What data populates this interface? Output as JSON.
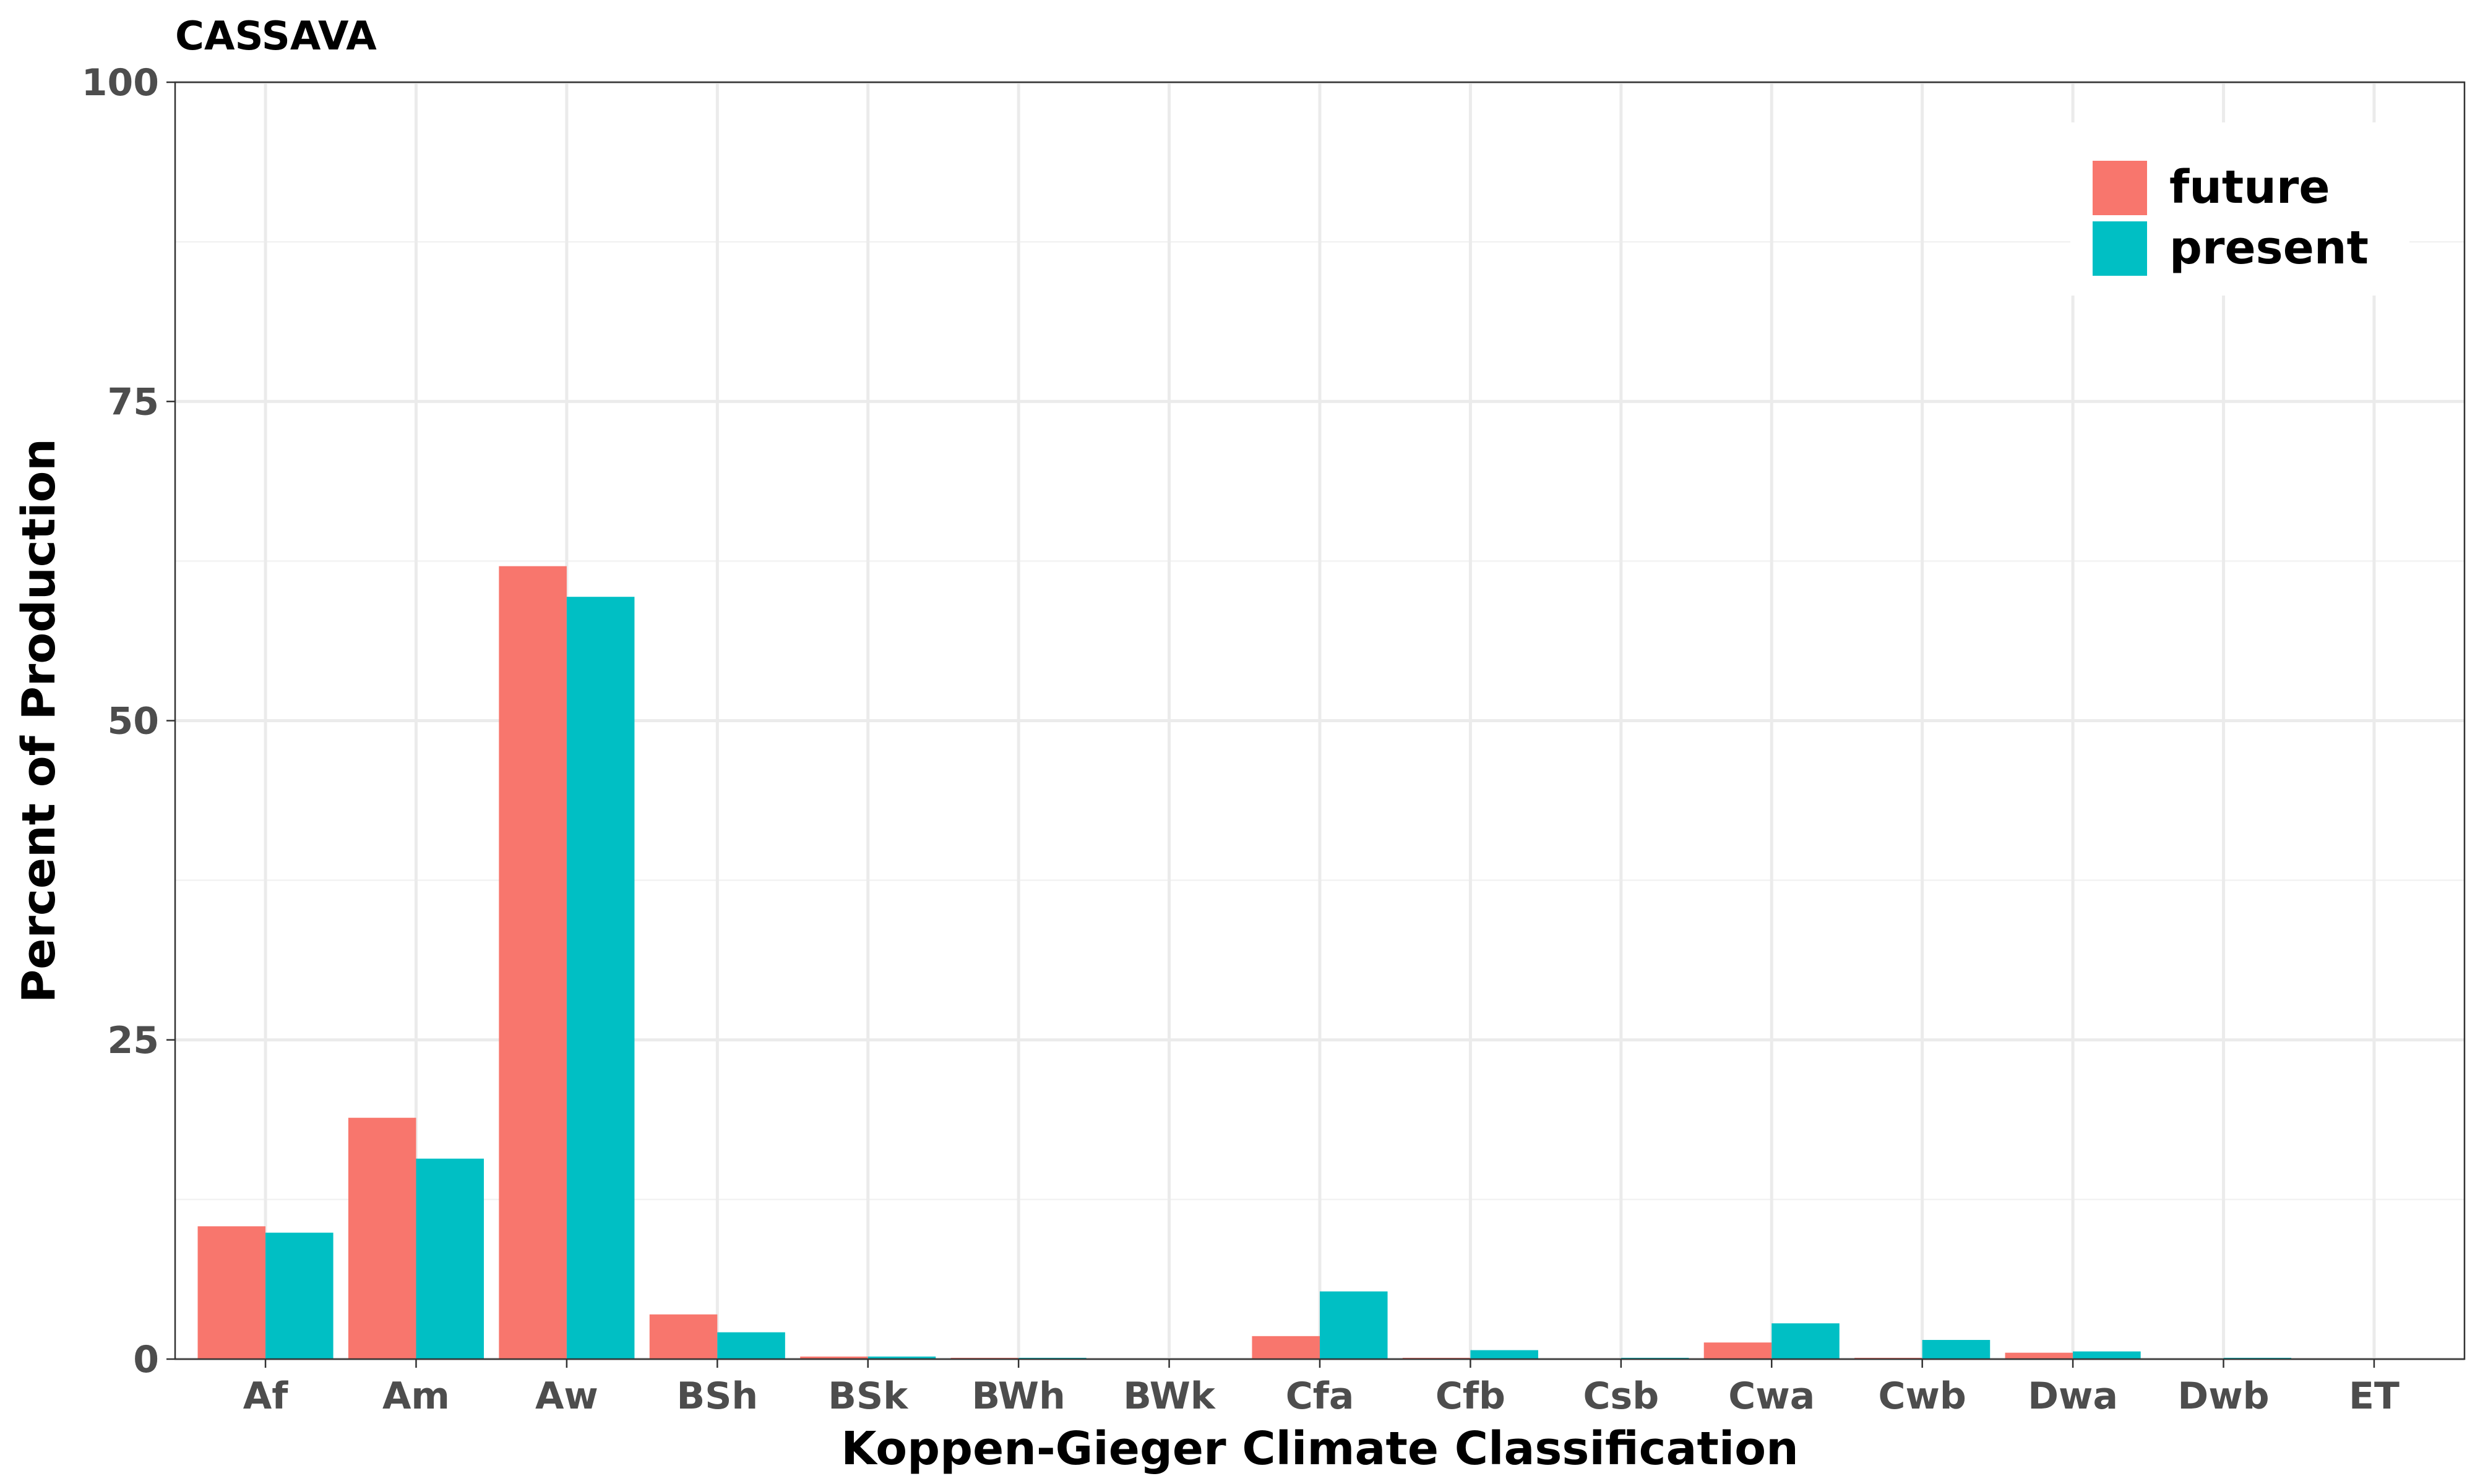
{
  "chart_data": {
    "type": "bar",
    "title": "CASSAVA",
    "xlabel": "Koppen-Gieger Climate Classification",
    "ylabel": "Percent of Production",
    "ylim": [
      0,
      100
    ],
    "yticks": [
      0,
      25,
      50,
      75,
      100
    ],
    "categories": [
      "Af",
      "Am",
      "Aw",
      "BSh",
      "BSk",
      "BWh",
      "BWk",
      "Cfa",
      "Cfb",
      "Csb",
      "Cwa",
      "Cwb",
      "Dwa",
      "Dwb",
      "ET"
    ],
    "series": [
      {
        "name": "future",
        "color": "#F8766D",
        "values": [
          10.4,
          18.9,
          62.1,
          3.5,
          0.2,
          0.1,
          0.0,
          1.8,
          0.1,
          0.0,
          1.3,
          0.1,
          0.5,
          0.0,
          0.0
        ]
      },
      {
        "name": "present",
        "color": "#00BFC4",
        "values": [
          9.9,
          15.7,
          59.7,
          2.1,
          0.2,
          0.1,
          0.0,
          5.3,
          0.7,
          0.1,
          2.8,
          1.5,
          0.6,
          0.1,
          0.0
        ]
      }
    ],
    "grid": true,
    "legend_position": "top-right"
  }
}
